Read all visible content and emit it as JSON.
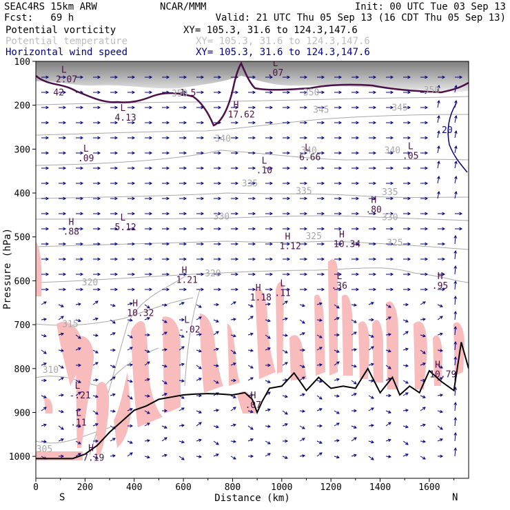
{
  "header": {
    "model": "SEAC4RS 15km ARW",
    "forecast": "Fcst:   69 h",
    "center": "NCAR/MMM",
    "init": "Init: 00 UTC Tue 03 Sep 13",
    "valid": "Valid: 21 UTC Thu 05 Sep 13 (16 CDT Thu 05 Sep 13)"
  },
  "variables": [
    {
      "label": "Potential vorticity",
      "xy": "XY= 105.3, 31.6 to 124.3,147.6",
      "color": "#000000"
    },
    {
      "label": "Potential temperature",
      "xy": "XY= 105.3, 31.6 to 124.3,147.6",
      "color": "#bdbdbd"
    },
    {
      "label": "Horizontal wind speed",
      "xy": "XY= 105.3, 31.6 to 124.3,147.6",
      "color": "#000080"
    }
  ],
  "colors": {
    "terrain_fill": "#f8bcbc",
    "theta": "#a8a8a8",
    "pv_contour": "#4b1048",
    "wind_arrows": "#000080",
    "labels_pv": "#4b1048"
  },
  "chart_data": {
    "type": "cross-section",
    "xlabel": "Distance (km)",
    "ylabel": "Pressure (hPa)",
    "xlim": [
      0,
      1760
    ],
    "ylim": [
      1050,
      100
    ],
    "x_ticks": [
      0,
      200,
      400,
      600,
      800,
      1000,
      1200,
      1400,
      1600
    ],
    "x_tick_labels": [
      "0",
      "200",
      "400",
      "600",
      "800",
      "1000",
      "1200",
      "1400",
      "1600"
    ],
    "y_ticks": [
      100,
      200,
      300,
      400,
      500,
      600,
      700,
      800,
      900,
      1000
    ],
    "y_tick_labels": [
      "100",
      "200",
      "300",
      "400",
      "500",
      "600",
      "700",
      "800",
      "900",
      "1000"
    ],
    "endpoints": {
      "left": "S",
      "right": "N"
    },
    "terrain": {
      "x": [
        0,
        150,
        200,
        250,
        300,
        350,
        400,
        450,
        500,
        550,
        600,
        650,
        700,
        750,
        800,
        850,
        880,
        900,
        920,
        950,
        1000,
        1050,
        1100,
        1150,
        1200,
        1250,
        1300,
        1350,
        1400,
        1450,
        1480,
        1520,
        1560,
        1600,
        1650,
        1700,
        1730,
        1760
      ],
      "p": [
        1005,
        1005,
        995,
        975,
        945,
        920,
        895,
        885,
        870,
        865,
        860,
        858,
        857,
        858,
        860,
        855,
        870,
        900,
        875,
        845,
        840,
        810,
        850,
        820,
        845,
        840,
        845,
        800,
        855,
        820,
        860,
        840,
        855,
        805,
        830,
        850,
        740,
        800
      ]
    },
    "theta_contours": [
      {
        "value": 305,
        "label_x": 35,
        "label_p": 990
      },
      {
        "value": 310,
        "label_x": 60,
        "label_p": 810
      },
      {
        "value": 315,
        "label_x": 140,
        "label_p": 705
      },
      {
        "value": 320,
        "label_x": 220,
        "label_p": 610
      },
      {
        "value": 320,
        "label_x": 720,
        "label_p": 590
      },
      {
        "value": 325,
        "label_x": 1130,
        "label_p": 505
      },
      {
        "value": 325,
        "label_x": 1460,
        "label_p": 520
      },
      {
        "value": 330,
        "label_x": 755,
        "label_p": 460
      },
      {
        "value": 330,
        "label_x": 1440,
        "label_p": 462
      },
      {
        "value": 335,
        "label_x": 870,
        "label_p": 385
      },
      {
        "value": 335,
        "label_x": 1090,
        "label_p": 402
      },
      {
        "value": 335,
        "label_x": 1440,
        "label_p": 405
      },
      {
        "value": 340,
        "label_x": 760,
        "label_p": 283
      },
      {
        "value": 340,
        "label_x": 1110,
        "label_p": 310
      },
      {
        "value": 340,
        "label_x": 1450,
        "label_p": 310
      },
      {
        "value": 345,
        "label_x": 1160,
        "label_p": 217
      },
      {
        "value": 345,
        "label_x": 1480,
        "label_p": 212
      },
      {
        "value": 350,
        "label_x": 585,
        "label_p": 180
      },
      {
        "value": 350,
        "label_x": 1120,
        "label_p": 178
      },
      {
        "value": 350,
        "label_x": 1610,
        "label_p": 172
      }
    ],
    "pv_contour_label": "1.5",
    "wind_contour_label": "20",
    "annotations": [
      {
        "kind": "L",
        "value": "2.07",
        "x": 120,
        "p": 148
      },
      {
        "kind": "",
        "value": "42",
        "x": 110,
        "p": 178
      },
      {
        "kind": "L",
        "value": "4.13",
        "x": 360,
        "p": 235
      },
      {
        "kind": "L",
        "value": ".09",
        "x": 210,
        "p": 328
      },
      {
        "kind": "H",
        "value": ".88",
        "x": 150,
        "p": 495
      },
      {
        "kind": "L",
        "value": "5.12",
        "x": 360,
        "p": 485
      },
      {
        "kind": "H",
        "value": "1.21",
        "x": 610,
        "p": 605
      },
      {
        "kind": "H",
        "value": "10.32",
        "x": 410,
        "p": 680
      },
      {
        "kind": "L",
        "value": "-.02",
        "x": 620,
        "p": 718
      },
      {
        "kind": "H",
        "value": "17.62",
        "x": 820,
        "p": 228
      },
      {
        "kind": "L",
        "value": ".07",
        "x": 980,
        "p": 133
      },
      {
        "kind": "L",
        "value": ".10",
        "x": 935,
        "p": 355
      },
      {
        "kind": "L",
        "value": "6.66",
        "x": 1110,
        "p": 325
      },
      {
        "kind": "H",
        "value": "1.12",
        "x": 1030,
        "p": 528
      },
      {
        "kind": "H",
        "value": "10.34",
        "x": 1250,
        "p": 523
      },
      {
        "kind": "H",
        "value": ".80",
        "x": 1380,
        "p": 445
      },
      {
        "kind": "L",
        "value": ".05",
        "x": 1530,
        "p": 322
      },
      {
        "kind": "H",
        "value": "1.18",
        "x": 910,
        "p": 645
      },
      {
        "kind": "L",
        "value": ".11",
        "x": 1010,
        "p": 635
      },
      {
        "kind": "L",
        "value": ".36",
        "x": 1240,
        "p": 618
      },
      {
        "kind": "H",
        "value": ".95",
        "x": 1650,
        "p": 618
      },
      {
        "kind": "H",
        "value": "10.79",
        "x": 1640,
        "p": 820
      },
      {
        "kind": "L",
        "value": "-.21",
        "x": 175,
        "p": 868
      },
      {
        "kind": "L",
        "value": ".11",
        "x": 180,
        "p": 930
      },
      {
        "kind": "H",
        "value": "7.19",
        "x": 230,
        "p": 1010
      },
      {
        "kind": "H",
        "value": ".07",
        "x": 890,
        "p": 890
      }
    ]
  }
}
